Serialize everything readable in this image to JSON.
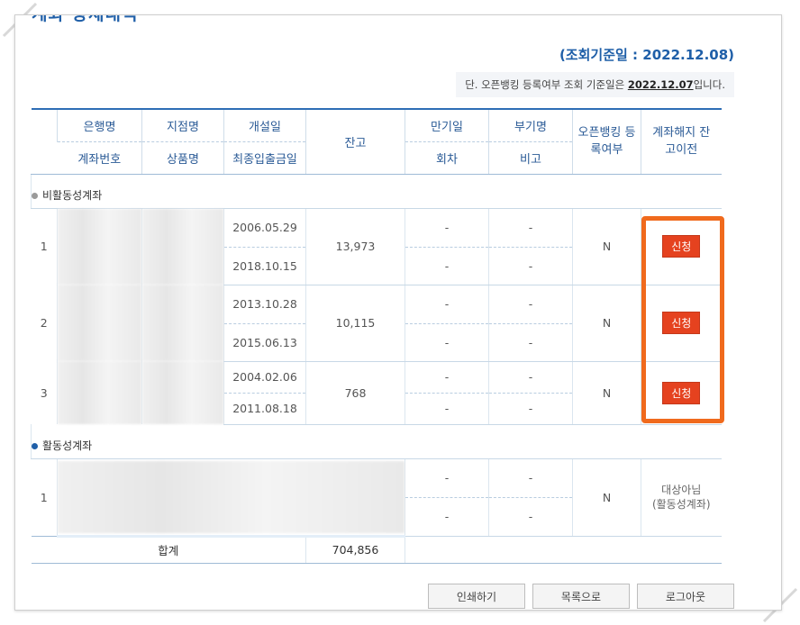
{
  "page": {
    "title": "계좌 상세내역"
  },
  "reference": {
    "date_label": "(조회기준일 : 2022.12.08)",
    "note_prefix": "단. 오픈뱅킹 등록여부 조회 기준일은 ",
    "note_date": "2022.12.07",
    "note_suffix": "입니다."
  },
  "header": {
    "bank": "은행명",
    "branch": "지점명",
    "open_date": "개설일",
    "balance": "잔고",
    "maturity": "만기일",
    "subtitle": "부기명",
    "openbank": "오픈뱅킹 등록여부",
    "close": "계좌해지 잔고이전",
    "account_no": "계좌번호",
    "product": "상품명",
    "last_txn": "최종입출금일",
    "round": "회차",
    "remark": "비고"
  },
  "sections": {
    "inactive": {
      "label": "비활동성계좌",
      "rows": [
        {
          "no": "1",
          "open_date": "2006.05.29",
          "last_txn": "2018.10.15",
          "balance": "13,973",
          "maturity": "-",
          "round": "-",
          "subtitle": "-",
          "remark": "-",
          "openbank": "N",
          "action": "신청"
        },
        {
          "no": "2",
          "open_date": "2013.10.28",
          "last_txn": "2015.06.13",
          "balance": "10,115",
          "maturity": "-",
          "round": "-",
          "subtitle": "-",
          "remark": "-",
          "openbank": "N",
          "action": "신청"
        },
        {
          "no": "3",
          "open_date": "2004.02.06",
          "last_txn": "2011.08.18",
          "balance": "768",
          "maturity": "-",
          "round": "-",
          "subtitle": "-",
          "remark": "-",
          "openbank": "N",
          "action": "신청"
        }
      ]
    },
    "active": {
      "label": "활동성계좌",
      "rows": [
        {
          "no": "1",
          "maturity": "-",
          "round": "-",
          "subtitle": "-",
          "remark": "-",
          "openbank": "N",
          "note_line1": "대상아님",
          "note_line2": "(활동성계좌)"
        }
      ]
    }
  },
  "total": {
    "label": "합계",
    "value": "704,856"
  },
  "buttons": {
    "print": "인쇄하기",
    "list": "목록으로",
    "logout": "로그아웃"
  },
  "colors": {
    "accent": "#1f5fa8",
    "apply_button": "#e5421f",
    "highlight": "#f06a1d"
  }
}
